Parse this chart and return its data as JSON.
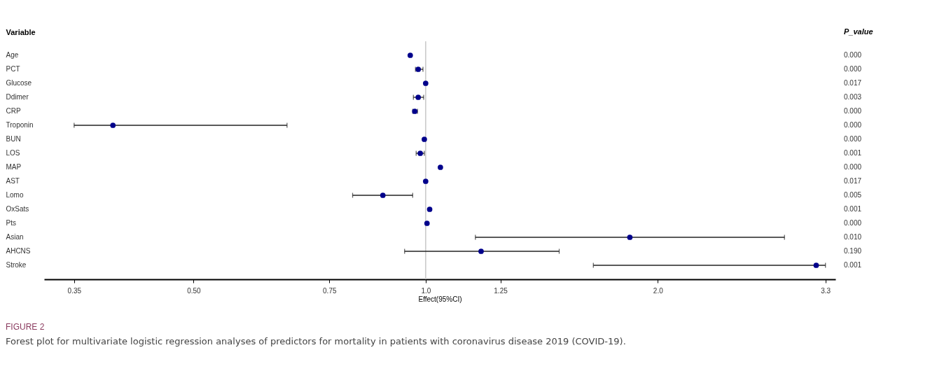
{
  "chart_data": {
    "type": "scatter",
    "orientation": "horizontal",
    "title": "FIGURE 2",
    "subtitle": "Forest plot for multivariate logistic regression analyses of predictors for mortality in patients with coronavirus disease 2019 (COVID-19).",
    "xlabel": "Effect(95%CI)",
    "ylabel": "Variable",
    "y2label": "P_value",
    "categories": [
      "Age",
      "PCT",
      "Glucose",
      "Ddimer",
      "CRP",
      "Troponin",
      "BUN",
      "LOS",
      "MAP",
      "AST",
      "Lomo",
      "OxSats",
      "Pts",
      "Asian",
      "AHCNS",
      "Stroke"
    ],
    "series": [
      {
        "color": "#00008b",
        "values": [
          0.955,
          0.978,
          1.0,
          0.978,
          0.968,
          0.393,
          0.996,
          0.984,
          1.045,
          1.0,
          0.88,
          1.012,
          1.004,
          1.84,
          1.18,
          3.21
        ],
        "errors": [
          null,
          [
            0.97,
            0.992
          ],
          null,
          [
            0.964,
            0.994
          ],
          [
            0.962,
            0.976
          ],
          [
            0.35,
            0.661
          ],
          null,
          [
            0.972,
            0.996
          ],
          null,
          null,
          [
            0.804,
            0.962
          ],
          null,
          null,
          [
            1.16,
            2.92
          ],
          [
            0.939,
            1.49
          ],
          [
            1.65,
            3.3
          ]
        ]
      }
    ],
    "annotations": [
      "0.000",
      "0.000",
      "0.017",
      "0.003",
      "0.000",
      "0.000",
      "0.000",
      "0.001",
      "0.000",
      "0.017",
      "0.005",
      "0.001",
      "0.000",
      "0.010",
      "0.190",
      "0.001"
    ],
    "log": "x",
    "xlim": [
      0.32,
      3.4
    ],
    "xticks": [
      0.35,
      {
        "value": 0.5,
        "label": "0.50"
      },
      0.75,
      {
        "value": 1,
        "label": "1.0"
      },
      1.25,
      {
        "value": 2,
        "label": "2.0"
      },
      3.3
    ],
    "ref_lines": [
      {
        "axis": "x",
        "value": 1,
        "color": "#c8c8c8"
      }
    ],
    "marker": "circle",
    "grid": false
  }
}
